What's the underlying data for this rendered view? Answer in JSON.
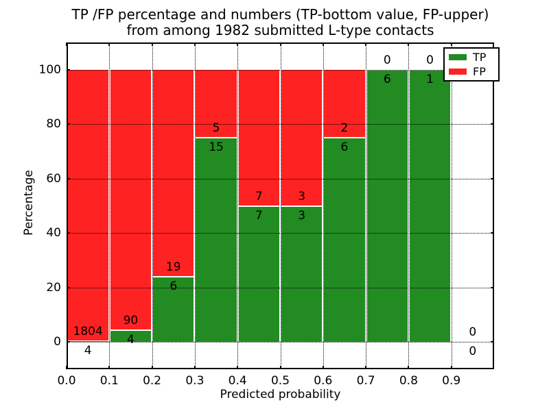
{
  "title": {
    "line1": "TP /FP percentage and numbers (TP-bottom value, FP-upper)",
    "line2": "from among 1982 submitted L-type contacts"
  },
  "axes": {
    "xlabel": "Predicted probability",
    "ylabel": "Percentage"
  },
  "legend": [
    {
      "label": "TP",
      "color": "#228b22"
    },
    {
      "label": "FP",
      "color": "#ff2222"
    }
  ],
  "colors": {
    "tp_green": "#228b22",
    "fp_red": "#ff2222",
    "grid": "#000000",
    "text": "#000000",
    "background": "#ffffff"
  },
  "chart_data": {
    "type": "bar",
    "subtype": "stacked-percentage-histogram",
    "title": "TP /FP percentage and numbers (TP-bottom value, FP-upper)\nfrom among 1982 submitted L-type contacts",
    "xlabel": "Predicted probability",
    "ylabel": "Percentage",
    "xlim": [
      0.0,
      1.0
    ],
    "ylim": [
      -10,
      110
    ],
    "xticks": [
      "0.0",
      "0.1",
      "0.2",
      "0.3",
      "0.4",
      "0.5",
      "0.6",
      "0.7",
      "0.8",
      "0.9"
    ],
    "yticks": [
      "0",
      "20",
      "40",
      "60",
      "80",
      "100"
    ],
    "grid": "dotted",
    "legend_entries": [
      "TP",
      "FP"
    ],
    "legend_position": "upper right",
    "total_contacts": 1982,
    "bins": [
      {
        "range": [
          0.0,
          0.1
        ],
        "tp": 4,
        "fp": 1804,
        "tp_pct": 0.2
      },
      {
        "range": [
          0.1,
          0.2
        ],
        "tp": 4,
        "fp": 90,
        "tp_pct": 4.3
      },
      {
        "range": [
          0.2,
          0.3
        ],
        "tp": 6,
        "fp": 19,
        "tp_pct": 24
      },
      {
        "range": [
          0.3,
          0.4
        ],
        "tp": 15,
        "fp": 5,
        "tp_pct": 75
      },
      {
        "range": [
          0.4,
          0.5
        ],
        "tp": 7,
        "fp": 7,
        "tp_pct": 50
      },
      {
        "range": [
          0.5,
          0.6
        ],
        "tp": 3,
        "fp": 3,
        "tp_pct": 50
      },
      {
        "range": [
          0.6,
          0.7
        ],
        "tp": 6,
        "fp": 2,
        "tp_pct": 75
      },
      {
        "range": [
          0.7,
          0.8
        ],
        "tp": 6,
        "fp": 0,
        "tp_pct": 100
      },
      {
        "range": [
          0.8,
          0.9
        ],
        "tp": 1,
        "fp": 0,
        "tp_pct": 100
      },
      {
        "range": [
          0.9,
          1.0
        ],
        "tp": 0,
        "fp": 0,
        "tp_pct": null
      }
    ]
  }
}
